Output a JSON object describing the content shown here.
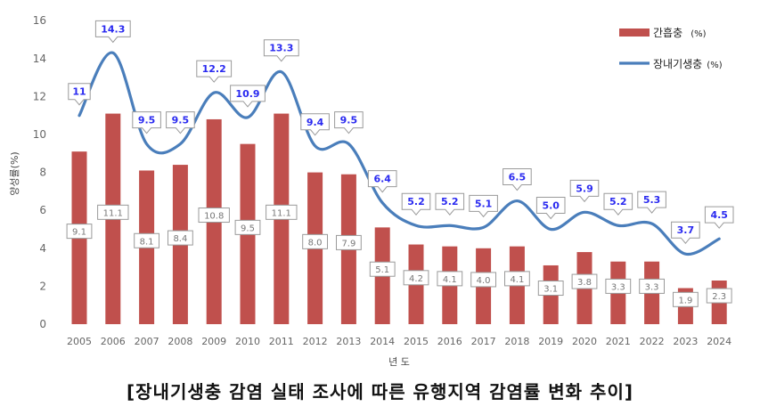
{
  "chart_data": {
    "type": "bar+line",
    "categories": [
      "2005",
      "2006",
      "2007",
      "2008",
      "2009",
      "2010",
      "2011",
      "2012",
      "2013",
      "2014",
      "2015",
      "2016",
      "2017",
      "2018",
      "2019",
      "2020",
      "2021",
      "2022",
      "2023",
      "2024"
    ],
    "series": [
      {
        "name": "간흡충",
        "unit": "(%)",
        "type": "bar",
        "color": "#c0504d",
        "values": [
          9.1,
          11.1,
          8.1,
          8.4,
          10.8,
          9.5,
          11.1,
          8.0,
          7.9,
          5.1,
          4.2,
          4.1,
          4.0,
          4.1,
          3.1,
          3.8,
          3.3,
          3.3,
          1.9,
          2.3
        ],
        "labels": [
          "9.1",
          "11.1",
          "8.1",
          "8.4",
          "10.8",
          "9.5",
          "11.1",
          "8.0",
          "7.9",
          "5.1",
          "4.2",
          "4.1",
          "4.0",
          "4.1",
          "3.1",
          "3.8",
          "3.3",
          "3.3",
          "1.9",
          "2.3"
        ]
      },
      {
        "name": "장내기생충",
        "unit": "(%)",
        "type": "line",
        "color": "#4a7ebb",
        "values": [
          11,
          14.3,
          9.5,
          9.5,
          12.2,
          10.9,
          13.3,
          9.4,
          9.5,
          6.4,
          5.2,
          5.2,
          5.1,
          6.5,
          5.0,
          5.9,
          5.2,
          5.3,
          3.7,
          4.5
        ],
        "labels": [
          "11",
          "14.3",
          "9.5",
          "9.5",
          "12.2",
          "10.9",
          "13.3",
          "9.4",
          "9.5",
          "6.4",
          "5.2",
          "5.2",
          "5.1",
          "6.5",
          "5.0",
          "5.9",
          "5.2",
          "5.3",
          "3.7",
          "4.5"
        ]
      }
    ],
    "y_ticks": [
      "0",
      "2",
      "4",
      "6",
      "8",
      "10",
      "12",
      "14",
      "16"
    ],
    "ylim": [
      0,
      16
    ],
    "ylabel": "양성률(%)",
    "xlabel": "년 도",
    "legend_position": "top-right",
    "grid": false
  },
  "caption": "[장내기생충 감염 실태 조사에 따른 유행지역 감염률 변화 추이]"
}
